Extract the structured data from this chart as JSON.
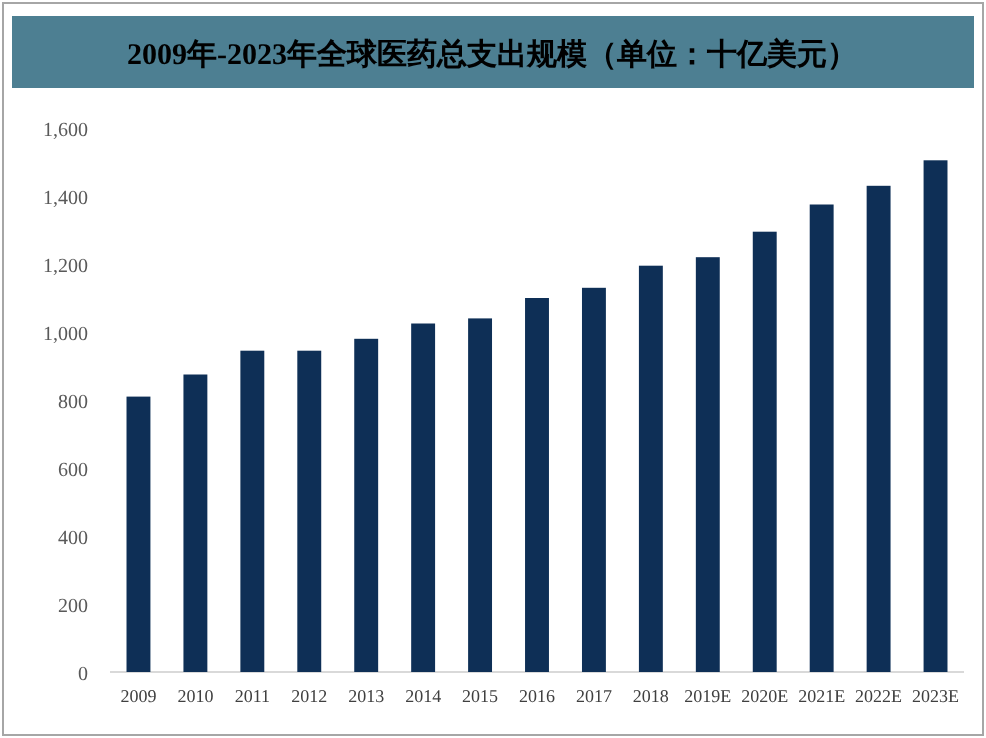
{
  "chart_data": {
    "type": "bar",
    "title": "2009年-2023年全球医药总支出规模（单位：十亿美元）",
    "categories": [
      "2009",
      "2010",
      "2011",
      "2012",
      "2013",
      "2014",
      "2015",
      "2016",
      "2017",
      "2018",
      "2019E",
      "2020E",
      "2021E",
      "2022E",
      "2023E"
    ],
    "values": [
      810,
      875,
      945,
      945,
      980,
      1025,
      1040,
      1100,
      1130,
      1195,
      1220,
      1295,
      1375,
      1430,
      1505
    ],
    "color": "#0e2f56",
    "ylim": [
      0,
      1600
    ],
    "yticks": [
      {
        "value": 0,
        "label": "0"
      },
      {
        "value": 200,
        "label": "200"
      },
      {
        "value": 400,
        "label": "400"
      },
      {
        "value": 600,
        "label": "600"
      },
      {
        "value": 800,
        "label": "800"
      },
      {
        "value": 1000,
        "label": "1,000"
      },
      {
        "value": 1200,
        "label": "1,200"
      },
      {
        "value": 1400,
        "label": "1,400"
      },
      {
        "value": 1600,
        "label": "1,600"
      }
    ],
    "grid": false
  }
}
